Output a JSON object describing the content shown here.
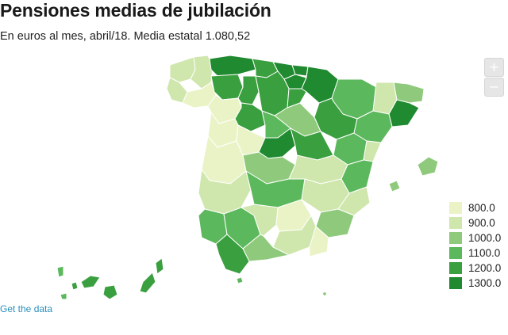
{
  "header": {
    "title": "Pensiones medias de jubilación",
    "subtitle": "En euros al mes, abril/18. Media estatal 1.080,52"
  },
  "zoom": {
    "in_label": "+",
    "out_label": "−"
  },
  "legend": {
    "items": [
      {
        "label": "800.0",
        "color": "#eaf3c6"
      },
      {
        "label": "900.0",
        "color": "#cfe6ac"
      },
      {
        "label": "1000.0",
        "color": "#8fca7c"
      },
      {
        "label": "1100.0",
        "color": "#5cb85c"
      },
      {
        "label": "1200.0",
        "color": "#3a9f3f"
      },
      {
        "label": "1300.0",
        "color": "#1f8a2f"
      }
    ]
  },
  "footer": {
    "link_label": "Get the data"
  }
}
